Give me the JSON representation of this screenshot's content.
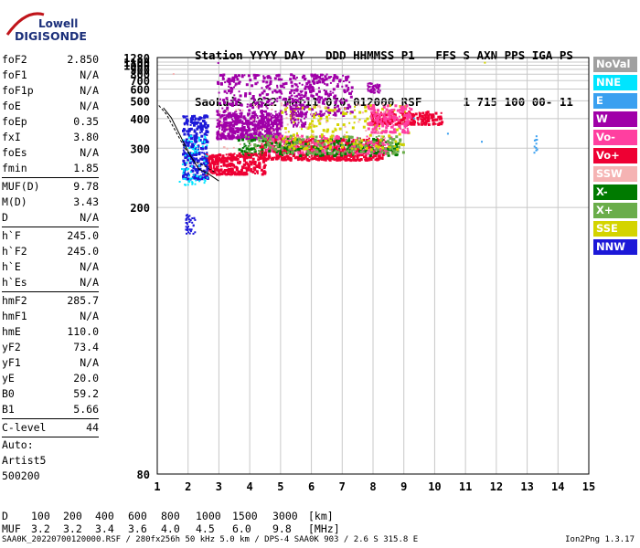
{
  "logo": {
    "line1": "Lowell",
    "line2": "DIGISONDE"
  },
  "header": {
    "row1": "Station YYYY DAY   DDD HHMMSS P1   FFS S AXN PPS IGA PS",
    "row2": "SaoLuis 2022 Mar11 070 012000 RSF      1 715 100 00- 11"
  },
  "params": [
    {
      "label": "foF2",
      "value": "2.850"
    },
    {
      "label": "foF1",
      "value": "N/A"
    },
    {
      "label": "foF1p",
      "value": "N/A"
    },
    {
      "label": "foE",
      "value": "N/A"
    },
    {
      "label": "foEp",
      "value": "0.35"
    },
    {
      "label": "fxI",
      "value": "3.80"
    },
    {
      "label": "foEs",
      "value": "N/A"
    },
    {
      "label": "fmin",
      "value": "1.85"
    },
    {
      "sep": true
    },
    {
      "label": "MUF(D)",
      "value": "9.78"
    },
    {
      "label": "M(D)",
      "value": "3.43"
    },
    {
      "label": "D",
      "value": "N/A"
    },
    {
      "sep": true
    },
    {
      "label": "h`F",
      "value": "245.0"
    },
    {
      "label": "h`F2",
      "value": "245.0"
    },
    {
      "label": "h`E",
      "value": "N/A"
    },
    {
      "label": "h`Es",
      "value": "N/A"
    },
    {
      "sep": true
    },
    {
      "label": "hmF2",
      "value": "285.7"
    },
    {
      "label": "hmF1",
      "value": "N/A"
    },
    {
      "label": "hmE",
      "value": "110.0"
    },
    {
      "label": "yF2",
      "value": "73.4"
    },
    {
      "label": "yF1",
      "value": "N/A"
    },
    {
      "label": "yE",
      "value": "20.0"
    },
    {
      "label": "B0",
      "value": "59.2"
    },
    {
      "label": "B1",
      "value": "5.66"
    },
    {
      "sep": true
    },
    {
      "label": "C-level",
      "value": "44"
    },
    {
      "sep": true
    }
  ],
  "auto": {
    "line1": "Auto:",
    "line2": "Artist5",
    "line3": "500200"
  },
  "legend": [
    {
      "label": "NoVal",
      "color": "#a0a0a0"
    },
    {
      "label": "NNE",
      "color": "#00e5ff"
    },
    {
      "label": "E",
      "color": "#3aa0f0"
    },
    {
      "label": "W",
      "color": "#a000a8"
    },
    {
      "label": "Vo-",
      "color": "#ff3fa0"
    },
    {
      "label": "Vo+",
      "color": "#ee0033"
    },
    {
      "label": "SSW",
      "color": "#f5b3b3"
    },
    {
      "label": "X-",
      "color": "#007a00"
    },
    {
      "label": "X+",
      "color": "#6aad4a"
    },
    {
      "label": "SSE",
      "color": "#d4d400"
    },
    {
      "label": "NNW",
      "color": "#1c18d8"
    }
  ],
  "dtable": {
    "d_label": "D",
    "d_values": [
      "100",
      "200",
      "400",
      "600",
      "800",
      "1000",
      "1500",
      "3000",
      "[km]"
    ],
    "muf_label": "MUF",
    "muf_values": [
      "3.2",
      "3.2",
      "3.4",
      "3.6",
      "4.0",
      "4.5",
      "6.0",
      "9.8",
      "[MHz]"
    ]
  },
  "footer": "SAA0K_20220700120000.RSF / 280fx256h 50 kHz 5.0 km / DPS-4 SAA0K 903 / 2.6 S 315.8 E",
  "footer_right": "Ion2Png 1.3.17",
  "chart_data": {
    "type": "scatter",
    "x": {
      "min": 1,
      "max": 15,
      "ticks": [
        1,
        2,
        3,
        4,
        5,
        6,
        7,
        8,
        9,
        10,
        11,
        12,
        13,
        14,
        15
      ]
    },
    "y": {
      "min": 80,
      "max": 1280,
      "ticks": [
        80,
        200,
        300,
        400,
        500,
        600,
        700,
        800,
        900,
        1000,
        1100,
        1280
      ],
      "scale": "reciprocal"
    },
    "grid": true,
    "trace": {
      "name": "h'F2 profile",
      "points": [
        [
          1.05,
          470
        ],
        [
          1.3,
          420
        ],
        [
          1.6,
          350
        ],
        [
          1.9,
          300
        ],
        [
          2.2,
          270
        ],
        [
          2.5,
          262
        ],
        [
          2.85,
          250
        ]
      ]
    },
    "echo_regions": [
      {
        "color": "#a000a8",
        "x": [
          2.9,
          5.0
        ],
        "y": [
          330,
          430
        ],
        "n": 480
      },
      {
        "color": "#a000a8",
        "x": [
          2.9,
          7.3
        ],
        "y": [
          420,
          820
        ],
        "n": 420
      },
      {
        "color": "#ee0033",
        "x": [
          4.3,
          8.3
        ],
        "y": [
          275,
          330
        ],
        "n": 560
      },
      {
        "color": "#ff3fa0",
        "x": [
          4.5,
          8.6
        ],
        "y": [
          290,
          340
        ],
        "n": 240
      },
      {
        "color": "#007a00",
        "x": [
          3.6,
          8.8
        ],
        "y": [
          285,
          330
        ],
        "n": 200
      },
      {
        "color": "#6aad4a",
        "x": [
          3.8,
          9.0
        ],
        "y": [
          290,
          340
        ],
        "n": 180
      },
      {
        "color": "#d4d400",
        "x": [
          5.0,
          9.2
        ],
        "y": [
          300,
          480
        ],
        "n": 180
      },
      {
        "color": "#ee0033",
        "x": [
          2.5,
          4.5
        ],
        "y": [
          248,
          290
        ],
        "n": 300
      },
      {
        "color": "#1c18d8",
        "x": [
          1.8,
          2.6
        ],
        "y": [
          240,
          420
        ],
        "n": 260
      },
      {
        "color": "#1c18d8",
        "x": [
          1.9,
          2.2
        ],
        "y": [
          175,
          195
        ],
        "n": 40
      },
      {
        "color": "#00e5ff",
        "x": [
          1.7,
          2.6
        ],
        "y": [
          230,
          340
        ],
        "n": 80
      },
      {
        "color": "#ee0033",
        "x": [
          7.9,
          10.2
        ],
        "y": [
          380,
          440
        ],
        "n": 200
      },
      {
        "color": "#ff3fa0",
        "x": [
          7.8,
          9.2
        ],
        "y": [
          350,
          480
        ],
        "n": 160
      },
      {
        "color": "#a000a8",
        "x": [
          7.8,
          8.2
        ],
        "y": [
          570,
          680
        ],
        "n": 60
      },
      {
        "color": "#a000a8",
        "x": [
          5.3,
          5.8
        ],
        "y": [
          370,
          600
        ],
        "n": 120
      },
      {
        "color": "#3aa0f0",
        "x": [
          13.2,
          13.3
        ],
        "y": [
          290,
          340
        ],
        "n": 10
      },
      {
        "color": "#f5b3b3",
        "x": [
          3.0,
          8.5
        ],
        "y": [
          300,
          500
        ],
        "n": 80
      }
    ]
  }
}
